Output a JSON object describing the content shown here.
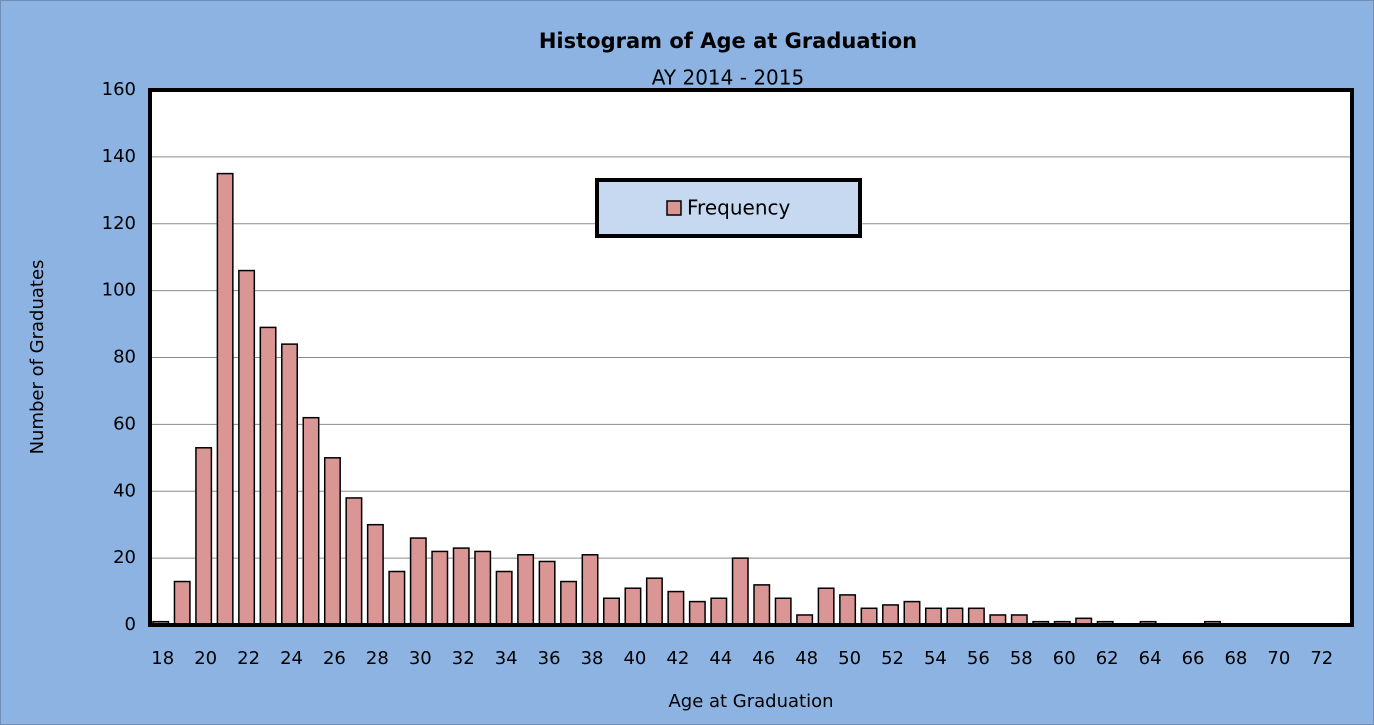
{
  "chart_data": {
    "type": "bar",
    "title": "Histogram of Age at Graduation",
    "subtitle": "AY 2014 - 2015",
    "x_label": "Age at Graduation",
    "y_label": "Number of Graduates",
    "categories": [
      18,
      null,
      20,
      null,
      22,
      null,
      24,
      null,
      26,
      null,
      28,
      null,
      30,
      null,
      32,
      null,
      34,
      null,
      36,
      null,
      38,
      null,
      40,
      null,
      42,
      null,
      44,
      null,
      46,
      null,
      48,
      null,
      50,
      null,
      52,
      null,
      54,
      null,
      56,
      null,
      58,
      null,
      60,
      null,
      62,
      null,
      64,
      null,
      66,
      null,
      68,
      null,
      70,
      null,
      72,
      null
    ],
    "series": [
      {
        "name": "Frequency",
        "color": "#d99694",
        "values": [
          1,
          13,
          53,
          135,
          106,
          89,
          84,
          62,
          50,
          38,
          30,
          16,
          26,
          22,
          23,
          22,
          16,
          21,
          19,
          13,
          21,
          8,
          11,
          14,
          10,
          7,
          8,
          20,
          12,
          8,
          3,
          11,
          9,
          5,
          6,
          7,
          5,
          5,
          5,
          3,
          3,
          1,
          1,
          2,
          1,
          0,
          1,
          0,
          0,
          1,
          0,
          0,
          0,
          0,
          0,
          0
        ]
      }
    ],
    "ylim": [
      0,
      160
    ],
    "yticks": [
      0,
      20,
      40,
      60,
      80,
      100,
      120,
      140,
      160
    ],
    "grid": true,
    "legend": "top"
  }
}
